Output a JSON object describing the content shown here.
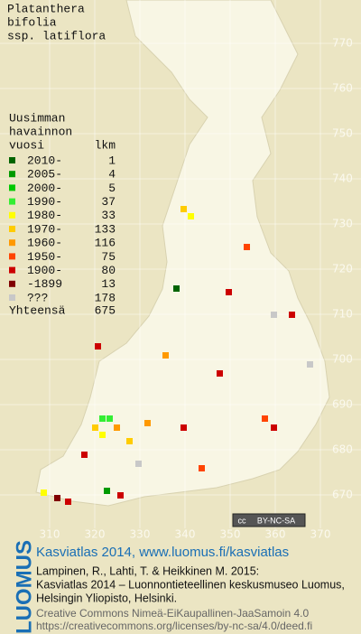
{
  "title": [
    "Platanthera",
    "bifolia",
    "ssp. latiflora"
  ],
  "legend": {
    "heading": [
      "Uusimman",
      "havainnon"
    ],
    "col_period": "vuosi",
    "col_count": "lkm",
    "rows": [
      {
        "label": "2010-",
        "count": 1,
        "color": "#006400"
      },
      {
        "label": "2005-",
        "count": 4,
        "color": "#009a00"
      },
      {
        "label": "2000-",
        "count": 5,
        "color": "#00c800"
      },
      {
        "label": "1990-",
        "count": 37,
        "color": "#33ee33"
      },
      {
        "label": "1980-",
        "count": 33,
        "color": "#ffff00"
      },
      {
        "label": "1970-",
        "count": 133,
        "color": "#ffcc00"
      },
      {
        "label": "1960-",
        "count": 116,
        "color": "#ff9900"
      },
      {
        "label": "1950-",
        "count": 75,
        "color": "#ff4400"
      },
      {
        "label": "1900-",
        "count": 80,
        "color": "#cc0000"
      },
      {
        "label": "-1899",
        "count": 13,
        "color": "#800000"
      },
      {
        "label": "???",
        "count": 178,
        "color": "#c8c8c8"
      }
    ],
    "total_label": "Yhteensä",
    "total": 675
  },
  "grid": {
    "y_labels": [
      770,
      760,
      750,
      740,
      730,
      720,
      710,
      700,
      690,
      680,
      670
    ],
    "x_labels": [
      310,
      320,
      330,
      340,
      350,
      360,
      370
    ]
  },
  "license_badge": {
    "cc": "cc",
    "text": "BY-NC-SA"
  },
  "footer": {
    "logo": "LUOMUS",
    "site": "Kasviatlas 2014, www.luomus.fi/kasviatlas",
    "citation": [
      "Lampinen, R., Lahti, T. & Heikkinen M. 2015:",
      "Kasviatlas 2014 – Luonnontieteellinen keskusmuseo Luomus,",
      "Helsingin Yliopisto, Helsinki."
    ],
    "license": [
      "Creative Commons Nimeä-EiKaupallinen-JaaSamoin 4.0",
      "https://creativecommons.org/licenses/by-nc-sa/4.0/deed.fi"
    ]
  }
}
